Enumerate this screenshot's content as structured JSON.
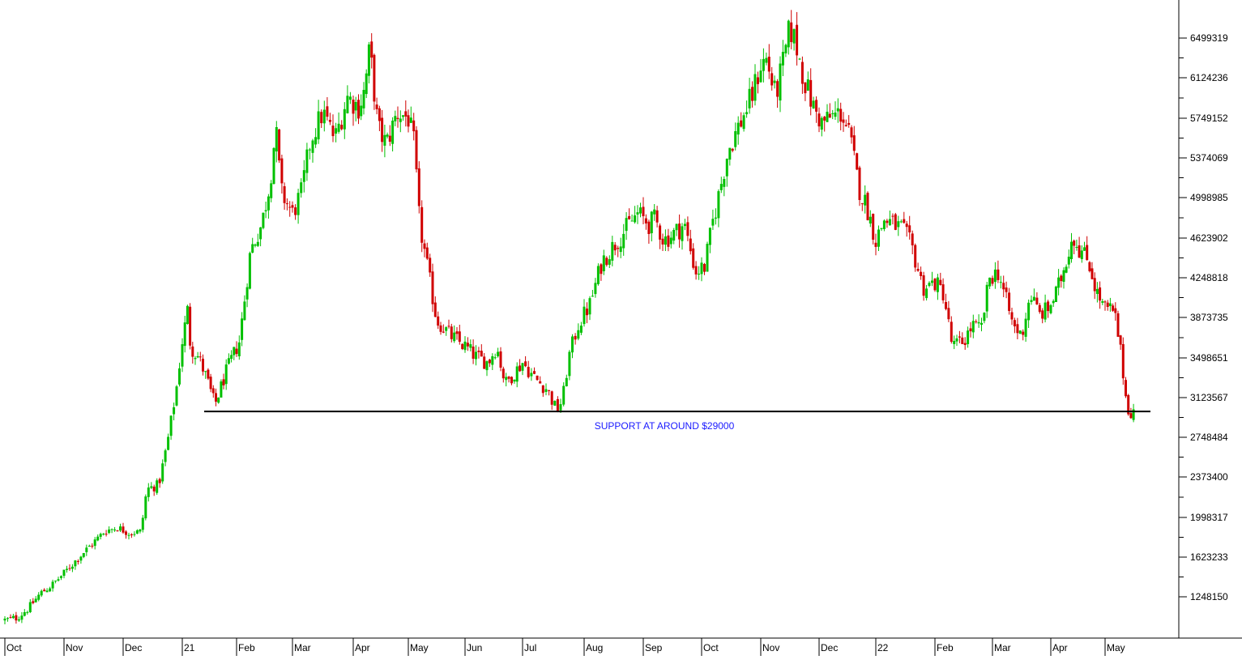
{
  "chart_data": {
    "type": "candlestick",
    "title": "",
    "xlabel": "",
    "ylabel": "",
    "ylim": [
      850000,
      6850000
    ],
    "y_ticks": [
      "6499319",
      "6124236",
      "5749152",
      "5374069",
      "4998985",
      "4623902",
      "4248818",
      "3873735",
      "3498651",
      "3123567",
      "2748484",
      "2373400",
      "1998317",
      "1623233",
      "1248150"
    ],
    "x_ticks": [
      "Oct",
      "Nov",
      "Dec",
      "21",
      "Feb",
      "Mar",
      "Apr",
      "May",
      "Jun",
      "Jul",
      "Aug",
      "Sep",
      "Oct",
      "Nov",
      "Dec",
      "22",
      "Feb",
      "Mar",
      "Apr",
      "May"
    ],
    "x_tick_index": [
      0,
      1,
      2,
      3,
      4,
      5,
      6,
      7,
      8,
      9,
      10,
      11,
      12,
      13,
      14,
      15,
      16,
      17,
      18,
      19
    ],
    "up_color": "#00c000",
    "down_color": "#d00000",
    "grid": false,
    "support": {
      "value": 2990000,
      "label": "SUPPORT AT AROUND $29000",
      "label_color": "#1a1aff",
      "line_color": "#000000"
    },
    "close_anchors": [
      [
        0.0,
        1030000
      ],
      [
        0.2,
        1050000
      ],
      [
        0.4,
        1140000
      ],
      [
        0.6,
        1280000
      ],
      [
        0.8,
        1360000
      ],
      [
        1.0,
        1470000
      ],
      [
        1.25,
        1620000
      ],
      [
        1.5,
        1760000
      ],
      [
        1.7,
        1870000
      ],
      [
        1.9,
        1900000
      ],
      [
        2.1,
        1850000
      ],
      [
        2.3,
        1860000
      ],
      [
        2.4,
        2260000
      ],
      [
        2.6,
        2300000
      ],
      [
        2.75,
        2700000
      ],
      [
        2.9,
        3200000
      ],
      [
        3.0,
        3650000
      ],
      [
        3.1,
        3950000
      ],
      [
        3.15,
        3600000
      ],
      [
        3.3,
        3500000
      ],
      [
        3.45,
        3300000
      ],
      [
        3.6,
        3050000
      ],
      [
        3.8,
        3350000
      ],
      [
        4.05,
        3650000
      ],
      [
        4.25,
        4500000
      ],
      [
        4.45,
        4750000
      ],
      [
        4.6,
        5150000
      ],
      [
        4.7,
        5650000
      ],
      [
        4.8,
        5050000
      ],
      [
        5.0,
        4850000
      ],
      [
        5.15,
        5050000
      ],
      [
        5.3,
        5550000
      ],
      [
        5.5,
        5800000
      ],
      [
        5.7,
        5550000
      ],
      [
        5.9,
        5950000
      ],
      [
        6.1,
        5850000
      ],
      [
        6.2,
        6000000
      ],
      [
        6.3,
        6400000
      ],
      [
        6.45,
        5650000
      ],
      [
        6.6,
        5500000
      ],
      [
        6.8,
        5800000
      ],
      [
        7.0,
        5750000
      ],
      [
        7.1,
        5500000
      ],
      [
        7.2,
        4750000
      ],
      [
        7.35,
        4300000
      ],
      [
        7.5,
        3850000
      ],
      [
        7.75,
        3700000
      ],
      [
        8.0,
        3600000
      ],
      [
        8.2,
        3500000
      ],
      [
        8.4,
        3450000
      ],
      [
        8.55,
        3600000
      ],
      [
        8.7,
        3250000
      ],
      [
        8.85,
        3350000
      ],
      [
        9.0,
        3450000
      ],
      [
        9.2,
        3300000
      ],
      [
        9.4,
        3200000
      ],
      [
        9.55,
        3000000
      ],
      [
        9.65,
        3100000
      ],
      [
        9.75,
        3500000
      ],
      [
        9.9,
        3800000
      ],
      [
        10.1,
        4000000
      ],
      [
        10.3,
        4400000
      ],
      [
        10.5,
        4550000
      ],
      [
        10.7,
        4700000
      ],
      [
        10.9,
        4850000
      ],
      [
        11.1,
        4750000
      ],
      [
        11.2,
        4800000
      ],
      [
        11.35,
        4600000
      ],
      [
        11.5,
        4650000
      ],
      [
        11.7,
        4750000
      ],
      [
        11.9,
        4300000
      ],
      [
        12.05,
        4350000
      ],
      [
        12.2,
        4800000
      ],
      [
        12.3,
        5050000
      ],
      [
        12.45,
        5450000
      ],
      [
        12.65,
        5700000
      ],
      [
        12.85,
        5950000
      ],
      [
        13.0,
        6250000
      ],
      [
        13.1,
        6300000
      ],
      [
        13.25,
        5950000
      ],
      [
        13.4,
        6300000
      ],
      [
        13.5,
        6600000
      ],
      [
        13.6,
        6450000
      ],
      [
        13.75,
        6100000
      ],
      [
        13.9,
        5850000
      ],
      [
        14.05,
        5700000
      ],
      [
        14.2,
        5750000
      ],
      [
        14.4,
        5800000
      ],
      [
        14.55,
        5550000
      ],
      [
        14.7,
        5100000
      ],
      [
        14.85,
        4900000
      ],
      [
        15.0,
        4600000
      ],
      [
        15.15,
        4800000
      ],
      [
        15.3,
        4750000
      ],
      [
        15.45,
        4700000
      ],
      [
        15.6,
        4550000
      ],
      [
        15.8,
        4150000
      ],
      [
        16.0,
        4200000
      ],
      [
        16.15,
        4100000
      ],
      [
        16.3,
        3600000
      ],
      [
        16.5,
        3650000
      ],
      [
        16.65,
        3800000
      ],
      [
        16.8,
        3750000
      ],
      [
        16.95,
        4250000
      ],
      [
        17.1,
        4300000
      ],
      [
        17.2,
        4100000
      ],
      [
        17.35,
        3800000
      ],
      [
        17.5,
        3700000
      ],
      [
        17.65,
        4100000
      ],
      [
        17.8,
        3900000
      ],
      [
        17.95,
        3950000
      ],
      [
        18.1,
        4100000
      ],
      [
        18.25,
        4350000
      ],
      [
        18.4,
        4650000
      ],
      [
        18.55,
        4500000
      ],
      [
        18.7,
        4400000
      ],
      [
        18.85,
        4100000
      ],
      [
        19.0,
        3950000
      ],
      [
        19.1,
        3950000
      ],
      [
        19.2,
        3850000
      ],
      [
        19.3,
        3500000
      ],
      [
        19.4,
        3050000
      ],
      [
        19.5,
        2950000
      ],
      [
        19.53,
        3000000
      ]
    ]
  }
}
